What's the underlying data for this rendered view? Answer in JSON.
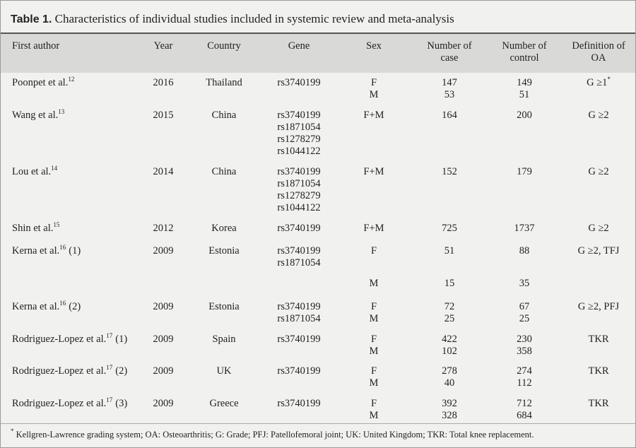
{
  "title": {
    "label": "Table 1.",
    "text": "Characteristics of individual studies included in systemic review and meta-analysis"
  },
  "table": {
    "header": [
      "First author",
      "Year",
      "Country",
      "Gene",
      "Sex",
      "Number of case",
      "Number of control",
      "Definition of OA"
    ],
    "rows": [
      {
        "author": {
          "name": "Poonpet et al.",
          "ref": "12"
        },
        "year": "2016",
        "country": "Thailand",
        "genes": [
          "rs3740199"
        ],
        "sex": [
          "F",
          "M"
        ],
        "cases": [
          147,
          53
        ],
        "controls": [
          149,
          51
        ],
        "definition": {
          "text": "G ≥1",
          "mark": "*"
        }
      },
      {
        "author": {
          "name": "Wang et al.",
          "ref": "13"
        },
        "year": "2015",
        "country": "China",
        "genes": [
          "rs3740199",
          "rs1871054",
          "rs1278279",
          "rs1044122"
        ],
        "sex": [
          "F+M"
        ],
        "cases": [
          164
        ],
        "controls": [
          200
        ],
        "definition": {
          "text": "G ≥2"
        }
      },
      {
        "author": {
          "name": "Lou et al.",
          "ref": "14"
        },
        "year": "2014",
        "country": "China",
        "genes": [
          "rs3740199",
          "rs1871054",
          "rs1278279",
          "rs1044122"
        ],
        "sex": [
          "F+M"
        ],
        "cases": [
          152
        ],
        "controls": [
          179
        ],
        "definition": {
          "text": "G ≥2"
        }
      },
      {
        "author": {
          "name": "Shin et al.",
          "ref": "15"
        },
        "year": "2012",
        "country": "Korea",
        "genes": [
          "rs3740199"
        ],
        "sex": [
          "F+M"
        ],
        "cases": [
          725
        ],
        "controls": [
          1737
        ],
        "definition": {
          "text": "G ≥2"
        }
      },
      {
        "author": {
          "name": "Kerna et al.",
          "ref": "16",
          "suffix": "(1)"
        },
        "year": "2009",
        "country": "Estonia",
        "genes": [
          "rs3740199",
          "rs1871054"
        ],
        "sex": [
          "F"
        ],
        "cases": [
          51
        ],
        "controls": [
          88
        ],
        "definition": {
          "text": "G ≥2, TFJ"
        }
      },
      {
        "sex": [
          "M"
        ],
        "cases": [
          15
        ],
        "controls": [
          35
        ]
      },
      {
        "author": {
          "name": "Kerna et al.",
          "ref": "16",
          "suffix": "(2)"
        },
        "year": "2009",
        "country": "Estonia",
        "genes": [
          "rs3740199",
          "rs1871054"
        ],
        "sex": [
          "F",
          "M"
        ],
        "cases": [
          72,
          25
        ],
        "controls": [
          67,
          25
        ],
        "definition": {
          "text": "G ≥2, PFJ"
        }
      },
      {
        "author": {
          "name": "Rodriguez-Lopez et al.",
          "ref": "17",
          "suffix": "(1)"
        },
        "year": "2009",
        "country": "Spain",
        "genes": [
          "rs3740199"
        ],
        "sex": [
          "F",
          "M"
        ],
        "cases": [
          422,
          102
        ],
        "controls": [
          230,
          358
        ],
        "definition": {
          "text": "TKR"
        }
      },
      {
        "author": {
          "name": "Rodriguez-Lopez et al.",
          "ref": "17",
          "suffix": "(2)"
        },
        "year": "2009",
        "country": "UK",
        "genes": [
          "rs3740199"
        ],
        "sex": [
          "F",
          "M"
        ],
        "cases": [
          278,
          40
        ],
        "controls": [
          274,
          112
        ],
        "definition": {
          "text": "TKR"
        }
      },
      {
        "author": {
          "name": "Rodriguez-Lopez et al.",
          "ref": "17",
          "suffix": "(3)"
        },
        "year": "2009",
        "country": "Greece",
        "genes": [
          "rs3740199"
        ],
        "sex": [
          "F",
          "M"
        ],
        "cases": [
          392,
          328
        ],
        "controls": [
          712,
          684
        ],
        "definition": {
          "text": "TKR"
        }
      }
    ]
  },
  "footnote": {
    "mark": "*",
    "text": "Kellgren-Lawrence grading system; OA: Osteoarthritis; G: Grade; PFJ: Patellofemoral joint; UK: United Kingdom; TKR: Total knee replacement."
  }
}
